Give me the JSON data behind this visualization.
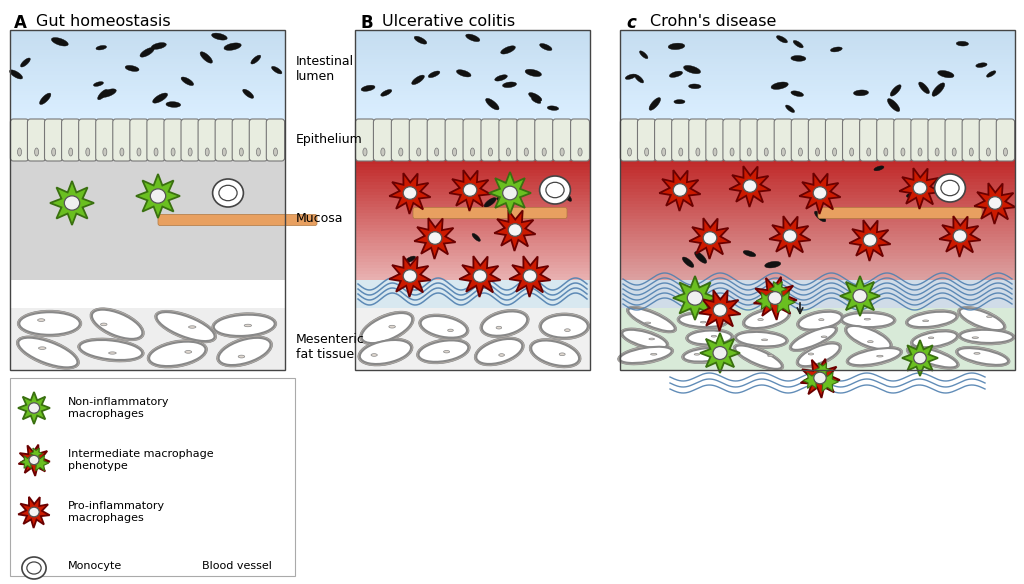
{
  "panel_A_title": "Gut homeostasis",
  "panel_B_title": "Ulcerative colitis",
  "panel_C_title": "Crohn's disease",
  "colors": {
    "background": "#ffffff",
    "lumen_blue_top": "#cce0f0",
    "lumen_blue_bot": "#ddeeff",
    "epithelium_fill": "#e8f0e0",
    "mucosa_healthy": "#d8d8d8",
    "mucosa_inflamed_dark": "#c03030",
    "mucosa_inflamed_light": "#e8b0b0",
    "fat_bg_normal": "#eeeeee",
    "fat_bg_crohns": "#d8ecd8",
    "macrophage_green": "#6abf20",
    "macrophage_green_dark": "#3a7010",
    "macrophage_red": "#cc1a00",
    "macrophage_red_dark": "#6a0000",
    "wave_color": "#5080b0",
    "blood_vessel": "#e8a060",
    "bacteria_color": "#111111",
    "villi_fill": "#e8ede0",
    "villi_edge": "#777777",
    "fat_edge": "#888888",
    "fat_fill": "#ffffff",
    "monocyte_edge": "#444444"
  }
}
